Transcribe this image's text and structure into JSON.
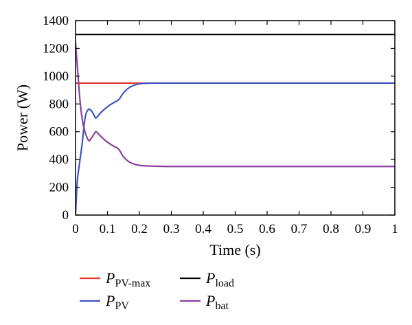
{
  "chart_data": {
    "type": "line",
    "xlabel": "Time (s)",
    "ylabel": "Power (W)",
    "xlim": [
      0,
      1
    ],
    "ylim": [
      0,
      1400
    ],
    "xticks": [
      "0",
      "0.1",
      "0.2",
      "0.3",
      "0.4",
      "0.5",
      "0.6",
      "0.7",
      "0.8",
      "0.9",
      "1"
    ],
    "yticks": [
      "0",
      "200",
      "400",
      "600",
      "800",
      "1000",
      "1200",
      "1400"
    ],
    "grid": false,
    "legend_position": "bottom",
    "series": [
      {
        "key": "pv_max",
        "name_main": "P",
        "name_sub": "PV-max",
        "color": "#e8332a",
        "x": [
          0,
          1
        ],
        "y": [
          950,
          950
        ]
      },
      {
        "key": "load",
        "name_main": "P",
        "name_sub": "load",
        "color": "#000000",
        "x": [
          0,
          1
        ],
        "y": [
          1300,
          1300
        ]
      },
      {
        "key": "pv",
        "name_main": "P",
        "name_sub": "PV",
        "color": "#3f55c4",
        "x": [
          0,
          0.005,
          0.01,
          0.02,
          0.03,
          0.04,
          0.05,
          0.06,
          0.065,
          0.08,
          0.1,
          0.12,
          0.135,
          0.15,
          0.17,
          0.2,
          0.25,
          0.3,
          0.4,
          1.0
        ],
        "y": [
          0,
          230,
          330,
          500,
          700,
          760,
          750,
          710,
          700,
          740,
          780,
          810,
          830,
          880,
          920,
          945,
          950,
          950,
          950,
          950
        ]
      },
      {
        "key": "bat",
        "name_main": "P",
        "name_sub": "bat",
        "color": "#8b3fa0",
        "x": [
          0,
          0.003,
          0.008,
          0.015,
          0.025,
          0.04,
          0.05,
          0.06,
          0.065,
          0.08,
          0.1,
          0.12,
          0.135,
          0.15,
          0.17,
          0.2,
          0.25,
          0.3,
          0.4,
          1.0
        ],
        "y": [
          1250,
          1150,
          1000,
          800,
          640,
          540,
          555,
          590,
          600,
          565,
          525,
          495,
          475,
          420,
          380,
          358,
          352,
          350,
          350,
          350
        ]
      }
    ]
  }
}
